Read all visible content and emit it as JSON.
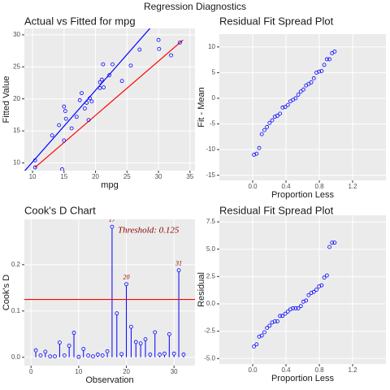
{
  "title": "Regression Diagnostics",
  "chart_data": [
    {
      "type": "scatter",
      "title": "Actual vs Fitted for mpg",
      "x_label": "mpg",
      "y_label": "Fitted Value",
      "color": "blue",
      "x": [
        10.4,
        10.4,
        13.1,
        14.2,
        14.7,
        15.0,
        15.0,
        15.2,
        15.3,
        16.2,
        17.0,
        17.5,
        17.8,
        18.3,
        18.6,
        18.9,
        19.1,
        19.4,
        20.7,
        20.7,
        21.0,
        21.2,
        21.3,
        22.2,
        22.7,
        24.2,
        25.6,
        27.0,
        30.0,
        30.1,
        32.0,
        33.4
      ],
      "y": [
        10.4,
        9.3,
        14.3,
        15.9,
        9.0,
        13.5,
        18.8,
        18.1,
        16.9,
        15.4,
        17.2,
        19.8,
        20.9,
        18.5,
        19.4,
        16.7,
        20.1,
        19.6,
        21.7,
        22.6,
        23.0,
        25.4,
        21.8,
        23.7,
        25.4,
        22.8,
        25.2,
        27.7,
        29.2,
        27.8,
        26.8,
        28.8
      ],
      "lines": [
        {
          "color": "blue",
          "x": [
            8.7,
            28.9
          ],
          "y": [
            8.7,
            31.3
          ]
        },
        {
          "color": "red",
          "x": [
            10.4,
            33.9
          ],
          "y": [
            9.3,
            29.2
          ]
        }
      ],
      "xlim": [
        8.7,
        35.8
      ],
      "ylim": [
        8.8,
        31.0
      ],
      "xticks": [
        10,
        15,
        20,
        25,
        30,
        35
      ],
      "yticks": [
        10,
        15,
        20,
        25,
        30
      ],
      "grid": true
    },
    {
      "type": "scatter",
      "title": "Residual Fit Spread Plot",
      "x_label": "Proportion Less",
      "y_label": "Fit - Mean",
      "color": "blue",
      "x": [
        0.016,
        0.047,
        0.078,
        0.109,
        0.141,
        0.172,
        0.203,
        0.234,
        0.266,
        0.297,
        0.328,
        0.359,
        0.391,
        0.422,
        0.453,
        0.484,
        0.516,
        0.547,
        0.578,
        0.609,
        0.641,
        0.672,
        0.703,
        0.734,
        0.766,
        0.797,
        0.828,
        0.859,
        0.891,
        0.922,
        0.953,
        0.984
      ],
      "y": [
        -11,
        -10.8,
        -9.7,
        -7.0,
        -6.2,
        -5.6,
        -4.8,
        -4.3,
        -3.6,
        -3.4,
        -3.0,
        -1.8,
        -1.7,
        -1.3,
        -0.6,
        -0.3,
        0.0,
        0.7,
        1.3,
        1.7,
        2.5,
        2.8,
        3.1,
        3.9,
        5.0,
        5.2,
        5.3,
        6.5,
        7.6,
        7.6,
        8.8,
        9.1
      ],
      "xlim": [
        -0.4,
        1.6
      ],
      "ylim": [
        -16,
        12.5
      ],
      "xticks": [
        {
          "value": 0,
          "label": "0.0"
        },
        {
          "value": 0.4,
          "label": "0.4"
        },
        {
          "value": 0.8,
          "label": "0.8"
        },
        {
          "value": 1.2,
          "label": "1.2"
        }
      ],
      "yticks": [
        -15,
        -10,
        -5,
        0,
        5,
        10
      ],
      "grid": true
    },
    {
      "type": "stem",
      "title": "Cook's D Chart",
      "x_label": "Observation",
      "y_label": "Cook's D",
      "color": "blue",
      "x": [
        1,
        2,
        3,
        4,
        5,
        6,
        7,
        8,
        9,
        10,
        11,
        12,
        13,
        14,
        15,
        16,
        17,
        18,
        19,
        20,
        21,
        22,
        23,
        24,
        25,
        26,
        27,
        28,
        29,
        30,
        31,
        32
      ],
      "values": [
        0.015,
        0.004,
        0.012,
        0.002,
        0.002,
        0.032,
        0.004,
        0.025,
        0.053,
        0.001,
        0.018,
        0.004,
        0.002,
        0.006,
        0.004,
        0.013,
        0.282,
        0.095,
        0.007,
        0.158,
        0.066,
        0.033,
        0.03,
        0.039,
        0.006,
        0.054,
        0.006,
        0.008,
        0.05,
        0.008,
        0.188,
        0.006
      ],
      "point_labels": [
        null,
        null,
        null,
        null,
        null,
        null,
        null,
        null,
        null,
        null,
        null,
        null,
        null,
        null,
        null,
        null,
        "17",
        null,
        null,
        "20",
        null,
        null,
        null,
        null,
        null,
        null,
        null,
        null,
        null,
        null,
        "31",
        null
      ],
      "threshold": 0.125,
      "threshold_color": "red",
      "annotation": "Threshold: 0.125",
      "xlim": [
        -1.4,
        34.4
      ],
      "ylim": [
        -0.018,
        0.298
      ],
      "xticks": [
        0,
        10,
        20,
        30
      ],
      "yticks": [
        {
          "value": 0,
          "label": "0.0"
        },
        {
          "value": 0.1,
          "label": "0.1"
        },
        {
          "value": 0.2,
          "label": "0.2"
        }
      ],
      "grid": true
    },
    {
      "type": "scatter",
      "title": "Residual Fit Spread Plot",
      "x_label": "Proportion Less",
      "y_label": "Residual",
      "color": "blue",
      "x": [
        0.016,
        0.047,
        0.078,
        0.109,
        0.141,
        0.172,
        0.203,
        0.234,
        0.266,
        0.297,
        0.328,
        0.359,
        0.391,
        0.422,
        0.453,
        0.484,
        0.516,
        0.547,
        0.578,
        0.609,
        0.641,
        0.672,
        0.703,
        0.734,
        0.766,
        0.797,
        0.828,
        0.859,
        0.891,
        0.922,
        0.953,
        0.984
      ],
      "y": [
        -3.9,
        -3.7,
        -3.0,
        -2.9,
        -2.6,
        -2.2,
        -2.0,
        -1.7,
        -1.6,
        -1.6,
        -1.1,
        -1.1,
        -0.9,
        -0.7,
        -0.5,
        -0.4,
        -0.4,
        -0.4,
        -0.2,
        0.2,
        0.3,
        0.8,
        1.0,
        1.1,
        1.3,
        1.6,
        1.7,
        2.4,
        2.6,
        5.2,
        5.6,
        5.6
      ],
      "xlim": [
        -0.4,
        1.6
      ],
      "ylim": [
        -5.5,
        8.1
      ],
      "xticks": [
        {
          "value": 0,
          "label": "0.0"
        },
        {
          "value": 0.4,
          "label": "0.4"
        },
        {
          "value": 0.8,
          "label": "0.8"
        },
        {
          "value": 1.2,
          "label": "1.2"
        }
      ],
      "yticks": [
        {
          "value": -5,
          "label": "-5.0"
        },
        {
          "value": -2.5,
          "label": "-2.5"
        },
        {
          "value": 0,
          "label": "0.0"
        },
        {
          "value": 2.5,
          "label": "2.5"
        },
        {
          "value": 5,
          "label": "5.0"
        },
        {
          "value": 7.5,
          "label": "7.5"
        }
      ],
      "grid": true
    }
  ]
}
